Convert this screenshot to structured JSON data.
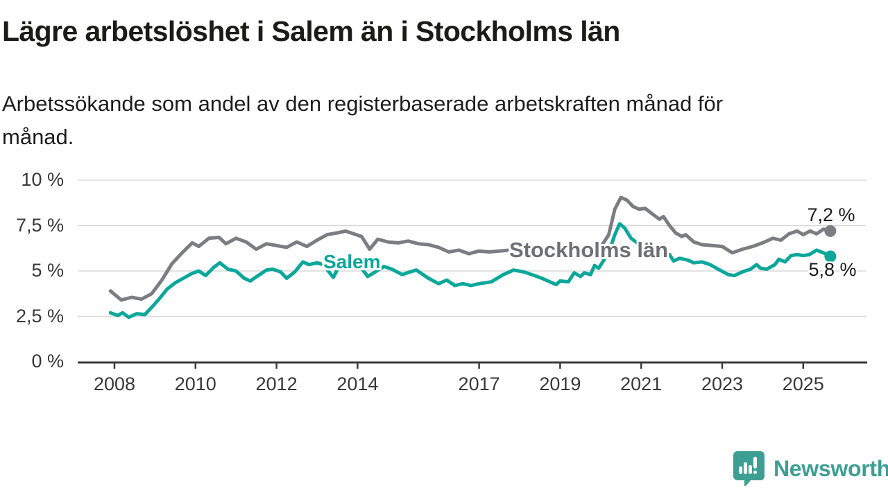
{
  "header": {
    "title": "Lägre arbetslöshet i Salem än i Stockholms län",
    "subtitle": "Arbetssökande som andel av den registerbaserade arbetskraften månad för\nmånad."
  },
  "footer": {
    "brand": "Newsworthy"
  },
  "chart_data": {
    "type": "line",
    "title": "Lägre arbetslöshet i Salem än i Stockholms län",
    "subtitle": "Arbetssökande som andel av den registerbaserade arbetskraften månad för månad.",
    "unit": "%",
    "ylim": [
      0,
      10
    ],
    "xlim": [
      2007.8,
      2026.5
    ],
    "grid": "horizontal",
    "colors": {
      "stockholms_lan": "#7c7d82",
      "salem": "#0ba79b",
      "axis": "#3b3b3b",
      "gridline": "#d8d8d8",
      "brand_teal": "#3d9f93"
    },
    "y_ticks": [
      {
        "value": 0,
        "label": "0 %"
      },
      {
        "value": 2.5,
        "label": "2,5 %"
      },
      {
        "value": 5,
        "label": "5 %"
      },
      {
        "value": 7.5,
        "label": "7,5 %"
      },
      {
        "value": 10,
        "label": "10 %"
      }
    ],
    "x_ticks": [
      {
        "year": 2008,
        "label": "2008"
      },
      {
        "year": 2010,
        "label": "2010"
      },
      {
        "year": 2012,
        "label": "2012"
      },
      {
        "year": 2014,
        "label": "2014"
      },
      {
        "year": 2017,
        "label": "2017"
      },
      {
        "year": 2019,
        "label": "2019"
      },
      {
        "year": 2021,
        "label": "2021"
      },
      {
        "year": 2023,
        "label": "2023"
      },
      {
        "year": 2025,
        "label": "2025"
      }
    ],
    "series": [
      {
        "name": "Stockholms län",
        "color": "#7c7d82",
        "end_label": "7,2 %",
        "end_value": 7.2,
        "points": [
          [
            2007.9,
            3.9
          ],
          [
            2008.17,
            3.4
          ],
          [
            2008.42,
            3.55
          ],
          [
            2008.67,
            3.45
          ],
          [
            2008.92,
            3.75
          ],
          [
            2009.17,
            4.5
          ],
          [
            2009.42,
            5.4
          ],
          [
            2009.67,
            6.0
          ],
          [
            2009.92,
            6.55
          ],
          [
            2010.08,
            6.35
          ],
          [
            2010.33,
            6.8
          ],
          [
            2010.58,
            6.85
          ],
          [
            2010.75,
            6.5
          ],
          [
            2011.0,
            6.8
          ],
          [
            2011.25,
            6.6
          ],
          [
            2011.5,
            6.2
          ],
          [
            2011.75,
            6.5
          ],
          [
            2012.0,
            6.4
          ],
          [
            2012.25,
            6.3
          ],
          [
            2012.5,
            6.6
          ],
          [
            2012.75,
            6.35
          ],
          [
            2013.0,
            6.7
          ],
          [
            2013.25,
            7.0
          ],
          [
            2013.5,
            7.1
          ],
          [
            2013.7,
            7.2
          ],
          [
            2013.9,
            7.05
          ],
          [
            2014.1,
            6.9
          ],
          [
            2014.3,
            6.2
          ],
          [
            2014.5,
            6.75
          ],
          [
            2014.75,
            6.6
          ],
          [
            2015.0,
            6.55
          ],
          [
            2015.25,
            6.65
          ],
          [
            2015.5,
            6.5
          ],
          [
            2015.75,
            6.45
          ],
          [
            2016.0,
            6.3
          ],
          [
            2016.25,
            6.05
          ],
          [
            2016.5,
            6.15
          ],
          [
            2016.75,
            5.95
          ],
          [
            2017.0,
            6.1
          ],
          [
            2017.25,
            6.05
          ],
          [
            2017.5,
            6.1
          ],
          [
            2017.75,
            6.15
          ],
          [
            2018.0,
            6.05
          ],
          [
            2018.25,
            6.1
          ],
          [
            2018.5,
            6.0
          ],
          [
            2018.75,
            6.1
          ],
          [
            2019.0,
            6.05
          ],
          [
            2019.25,
            6.1
          ],
          [
            2019.5,
            6.2
          ],
          [
            2019.75,
            6.15
          ],
          [
            2020.0,
            6.3
          ],
          [
            2020.2,
            7.0
          ],
          [
            2020.35,
            8.4
          ],
          [
            2020.5,
            9.05
          ],
          [
            2020.65,
            8.9
          ],
          [
            2020.8,
            8.55
          ],
          [
            2020.95,
            8.4
          ],
          [
            2021.1,
            8.45
          ],
          [
            2021.3,
            8.1
          ],
          [
            2021.45,
            7.85
          ],
          [
            2021.55,
            8.0
          ],
          [
            2021.7,
            7.5
          ],
          [
            2021.85,
            7.1
          ],
          [
            2022.0,
            6.9
          ],
          [
            2022.1,
            7.0
          ],
          [
            2022.3,
            6.6
          ],
          [
            2022.5,
            6.45
          ],
          [
            2022.75,
            6.4
          ],
          [
            2023.0,
            6.35
          ],
          [
            2023.25,
            6.0
          ],
          [
            2023.5,
            6.2
          ],
          [
            2023.75,
            6.35
          ],
          [
            2024.0,
            6.55
          ],
          [
            2024.25,
            6.8
          ],
          [
            2024.45,
            6.7
          ],
          [
            2024.65,
            7.05
          ],
          [
            2024.85,
            7.2
          ],
          [
            2025.0,
            7.0
          ],
          [
            2025.17,
            7.2
          ],
          [
            2025.33,
            7.05
          ],
          [
            2025.5,
            7.3
          ],
          [
            2025.67,
            7.2
          ]
        ]
      },
      {
        "name": "Salem",
        "color": "#0ba79b",
        "end_label": "5,8 %",
        "end_value": 5.8,
        "points": [
          [
            2007.9,
            2.7
          ],
          [
            2008.08,
            2.55
          ],
          [
            2008.2,
            2.7
          ],
          [
            2008.35,
            2.45
          ],
          [
            2008.55,
            2.65
          ],
          [
            2008.75,
            2.6
          ],
          [
            2008.92,
            3.0
          ],
          [
            2009.1,
            3.45
          ],
          [
            2009.3,
            4.0
          ],
          [
            2009.5,
            4.35
          ],
          [
            2009.7,
            4.6
          ],
          [
            2009.9,
            4.85
          ],
          [
            2010.08,
            5.0
          ],
          [
            2010.25,
            4.75
          ],
          [
            2010.45,
            5.2
          ],
          [
            2010.6,
            5.45
          ],
          [
            2010.8,
            5.1
          ],
          [
            2011.0,
            5.0
          ],
          [
            2011.2,
            4.6
          ],
          [
            2011.35,
            4.45
          ],
          [
            2011.55,
            4.75
          ],
          [
            2011.75,
            5.05
          ],
          [
            2011.9,
            5.1
          ],
          [
            2012.1,
            4.95
          ],
          [
            2012.25,
            4.6
          ],
          [
            2012.45,
            4.95
          ],
          [
            2012.65,
            5.5
          ],
          [
            2012.8,
            5.35
          ],
          [
            2013.0,
            5.45
          ],
          [
            2013.15,
            5.35
          ],
          [
            2013.4,
            4.65
          ],
          [
            2013.6,
            5.5
          ],
          [
            2013.75,
            5.65
          ],
          [
            2013.9,
            5.45
          ],
          [
            2014.1,
            5.15
          ],
          [
            2014.25,
            4.7
          ],
          [
            2014.4,
            4.9
          ],
          [
            2014.65,
            5.25
          ],
          [
            2014.85,
            5.1
          ],
          [
            2015.1,
            4.8
          ],
          [
            2015.3,
            4.95
          ],
          [
            2015.45,
            5.05
          ],
          [
            2015.75,
            4.6
          ],
          [
            2016.0,
            4.3
          ],
          [
            2016.2,
            4.5
          ],
          [
            2016.4,
            4.2
          ],
          [
            2016.6,
            4.3
          ],
          [
            2016.8,
            4.2
          ],
          [
            2017.0,
            4.3
          ],
          [
            2017.3,
            4.4
          ],
          [
            2017.6,
            4.8
          ],
          [
            2017.85,
            5.05
          ],
          [
            2018.1,
            4.95
          ],
          [
            2018.3,
            4.8
          ],
          [
            2018.55,
            4.6
          ],
          [
            2018.75,
            4.4
          ],
          [
            2018.9,
            4.25
          ],
          [
            2019.0,
            4.45
          ],
          [
            2019.2,
            4.4
          ],
          [
            2019.35,
            4.9
          ],
          [
            2019.5,
            4.7
          ],
          [
            2019.6,
            4.9
          ],
          [
            2019.75,
            4.8
          ],
          [
            2019.85,
            5.3
          ],
          [
            2019.95,
            5.15
          ],
          [
            2020.05,
            5.5
          ],
          [
            2020.2,
            6.0
          ],
          [
            2020.35,
            7.0
          ],
          [
            2020.47,
            7.6
          ],
          [
            2020.6,
            7.35
          ],
          [
            2020.75,
            6.8
          ],
          [
            2020.9,
            6.55
          ],
          [
            2021.1,
            6.3
          ],
          [
            2021.3,
            6.1
          ],
          [
            2021.5,
            5.95
          ],
          [
            2021.7,
            5.9
          ],
          [
            2021.8,
            5.55
          ],
          [
            2021.95,
            5.7
          ],
          [
            2022.15,
            5.6
          ],
          [
            2022.3,
            5.45
          ],
          [
            2022.5,
            5.5
          ],
          [
            2022.7,
            5.35
          ],
          [
            2022.9,
            5.1
          ],
          [
            2023.15,
            4.8
          ],
          [
            2023.3,
            4.75
          ],
          [
            2023.5,
            4.95
          ],
          [
            2023.7,
            5.1
          ],
          [
            2023.85,
            5.35
          ],
          [
            2023.95,
            5.15
          ],
          [
            2024.1,
            5.1
          ],
          [
            2024.3,
            5.35
          ],
          [
            2024.4,
            5.65
          ],
          [
            2024.55,
            5.5
          ],
          [
            2024.7,
            5.85
          ],
          [
            2024.85,
            5.9
          ],
          [
            2025.0,
            5.85
          ],
          [
            2025.15,
            5.9
          ],
          [
            2025.33,
            6.15
          ],
          [
            2025.5,
            6.0
          ],
          [
            2025.67,
            5.8
          ]
        ]
      }
    ],
    "annotations": {
      "series_label_salem": "Salem",
      "series_label_stockholms_lan": "Stockholms län",
      "end_label_stockholms_lan": "7,2 %",
      "end_label_salem": "5,8 %"
    }
  }
}
